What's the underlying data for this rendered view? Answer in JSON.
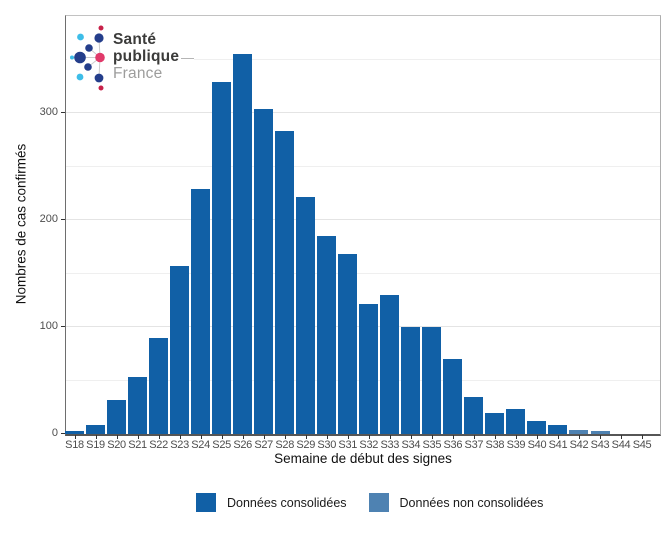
{
  "logo": {
    "line1": "Santé",
    "line2": "publique",
    "line3": "France"
  },
  "chart_data": {
    "type": "bar",
    "title": "",
    "xlabel": "Semaine de début des signes",
    "ylabel": "Nombres de cas confirmés",
    "categories": [
      "S18",
      "S19",
      "S20",
      "S21",
      "S22",
      "S23",
      "S24",
      "S25",
      "S26",
      "S27",
      "S28",
      "S29",
      "S30",
      "S31",
      "S32",
      "S33",
      "S34",
      "S35",
      "S36",
      "S37",
      "S38",
      "S39",
      "S40",
      "S41",
      "S42",
      "S43",
      "S44",
      "S45"
    ],
    "series": [
      {
        "name": "Données consolidées",
        "color": "#1160A6",
        "values": [
          3,
          8,
          32,
          53,
          90,
          157,
          229,
          329,
          355,
          304,
          283,
          222,
          185,
          168,
          122,
          130,
          100,
          100,
          70,
          35,
          20,
          23,
          12,
          8,
          0,
          0,
          0,
          0
        ]
      },
      {
        "name": "Données non consolidées",
        "color": "#4E82B2",
        "values": [
          0,
          0,
          0,
          0,
          0,
          0,
          0,
          0,
          0,
          0,
          0,
          0,
          0,
          0,
          0,
          0,
          0,
          0,
          0,
          0,
          0,
          0,
          0,
          0,
          4,
          3,
          0,
          0
        ]
      }
    ],
    "ylim": [
      0,
      390
    ],
    "yticks": [
      0,
      100,
      200,
      300
    ],
    "grid_step": 50,
    "grid": true,
    "legend_position": "bottom"
  },
  "legend": {
    "items": [
      {
        "label": "Données consolidées",
        "color": "#1160A6"
      },
      {
        "label": "Données non consolidées",
        "color": "#4E82B2"
      }
    ]
  },
  "logo_colors": {
    "navy": "#243E8B",
    "cyan": "#3DBDE8",
    "pink": "#E13A6A",
    "crimson": "#C72149"
  }
}
